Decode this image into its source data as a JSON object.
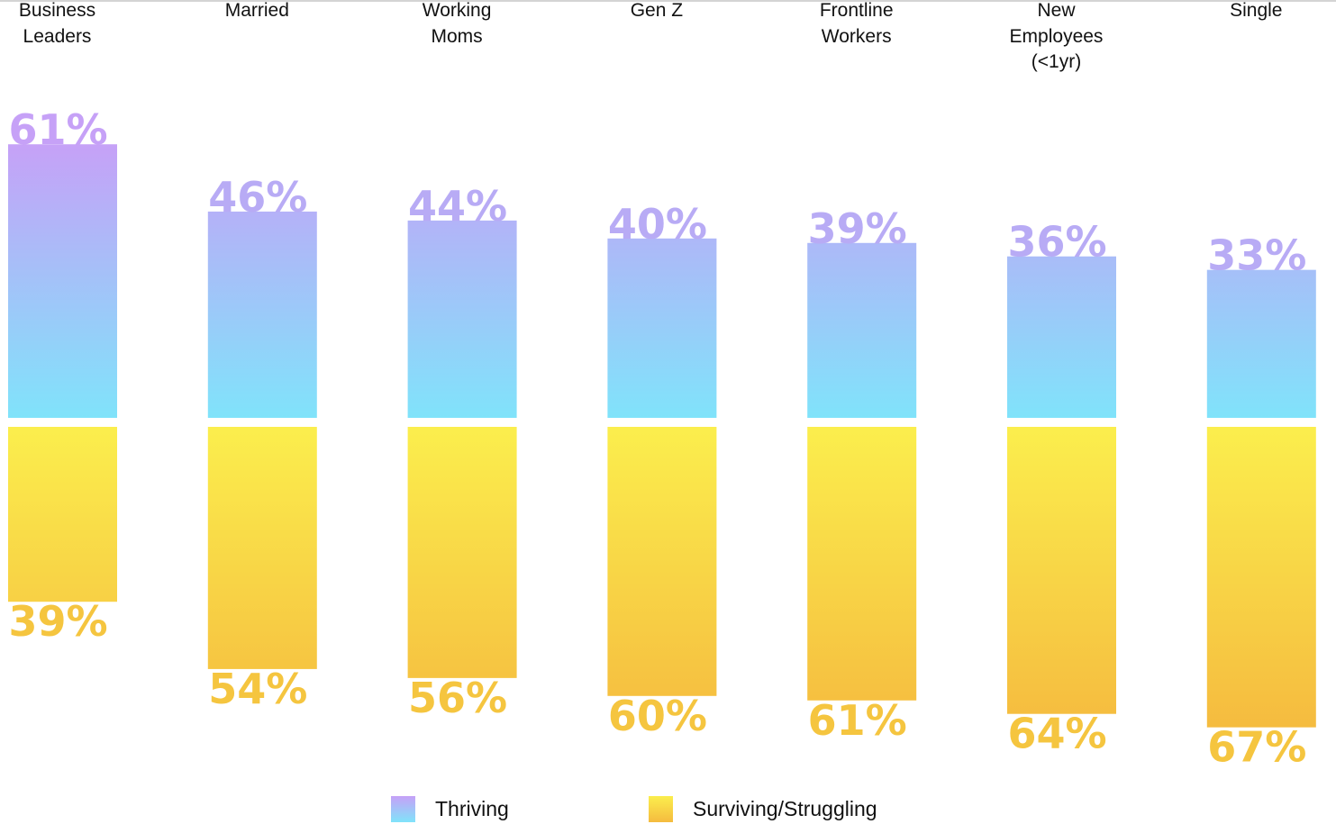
{
  "chart_data": {
    "type": "bar",
    "subtype": "diverging-stacked",
    "title": "",
    "xlabel": "",
    "ylabel": "",
    "ylim": [
      0,
      100
    ],
    "grid": false,
    "legend_position": "bottom-center",
    "categories": [
      "Business\nLeaders",
      "Married",
      "Working\nMoms",
      "Gen Z",
      "Frontline\nWorkers",
      "New\nEmployees\n(<1yr)",
      "Single"
    ],
    "series": [
      {
        "name": "Thriving",
        "values": [
          61,
          46,
          44,
          40,
          39,
          36,
          33
        ],
        "color_top": "#c6a1f7",
        "color_bottom": "#80e3fa"
      },
      {
        "name": "Surviving/Struggling",
        "values": [
          39,
          54,
          56,
          60,
          61,
          64,
          67
        ],
        "color_top": "#fbee4d",
        "color_bottom": "#f5bb3f"
      }
    ],
    "data_label_suffix": "%"
  },
  "legend": {
    "thriving": "Thriving",
    "surviving": "Surviving/Struggling"
  },
  "colors": {
    "thriving_label": "#b8abf5",
    "surviving_label": "#f5c53f"
  }
}
